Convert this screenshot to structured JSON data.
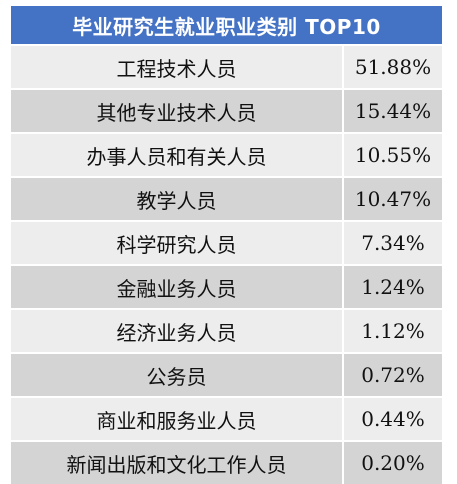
{
  "title": "毕业研究生就业职业类别 TOP10",
  "rows": [
    {
      "name": "工程技术人员",
      "value": "51.88%"
    },
    {
      "name": "其他专业技术人员",
      "value": "15.44%"
    },
    {
      "name": "办事人员和有关人员",
      "value": "10.55%"
    },
    {
      "name": "教学人员",
      "value": "10.47%"
    },
    {
      "name": "科学研究人员",
      "value": "7.34%"
    },
    {
      "name": "金融业务人员",
      "value": "1.24%"
    },
    {
      "name": "经济业务人员",
      "value": "1.12%"
    },
    {
      "name": "公务员",
      "value": "0.72%"
    },
    {
      "name": "商业和服务业人员",
      "value": "0.44%"
    },
    {
      "name": "新闻出版和文化工作人员",
      "value": "0.20%"
    }
  ],
  "colors": {
    "header_bg": "#4472c4",
    "row_light": "#ededed",
    "row_dark": "#d4d4d4"
  }
}
